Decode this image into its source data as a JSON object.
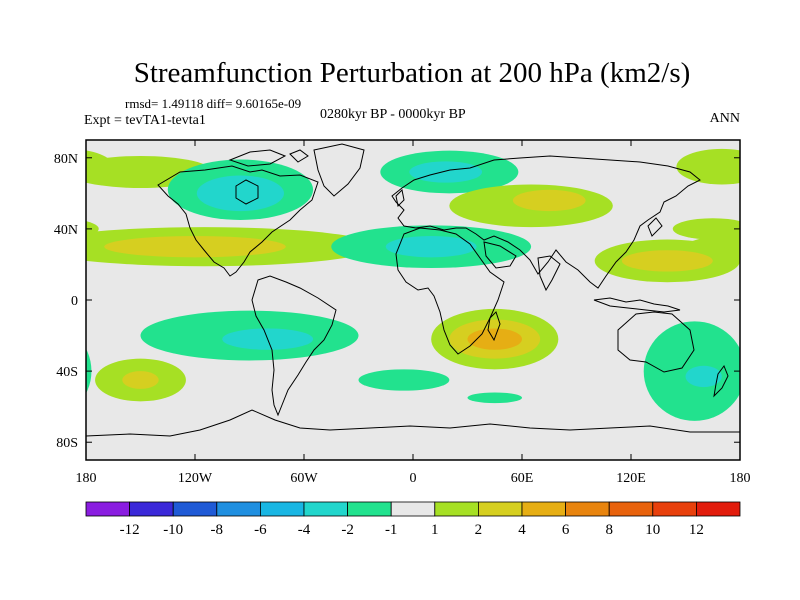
{
  "chart_data": {
    "type": "heatmap",
    "title": "Streamfunction Perturbation at 200 hPa (km2/s)",
    "stats_text": "rmsd= 1.49118 diff= 9.60165e-09",
    "experiment_text": "Expt = tevTA1-tevta1",
    "period_text": "0280kyr BP - 0000kyr BP",
    "season_text": "ANN",
    "xlim": [
      -180,
      180
    ],
    "ylim": [
      -90,
      90
    ],
    "x_ticks": [
      {
        "value": -180,
        "label": "180"
      },
      {
        "value": -120,
        "label": "120W"
      },
      {
        "value": -60,
        "label": "60W"
      },
      {
        "value": 0,
        "label": "0"
      },
      {
        "value": 60,
        "label": "60E"
      },
      {
        "value": 120,
        "label": "120E"
      },
      {
        "value": 180,
        "label": "180"
      }
    ],
    "y_ticks": [
      {
        "value": 80,
        "label": "80N"
      },
      {
        "value": 40,
        "label": "40N"
      },
      {
        "value": 0,
        "label": "0"
      },
      {
        "value": -40,
        "label": "40S"
      },
      {
        "value": -80,
        "label": "80S"
      }
    ],
    "colorbar_levels": [
      "-12",
      "-10",
      "-8",
      "-6",
      "-4",
      "-2",
      "-1",
      "1",
      "2",
      "4",
      "6",
      "8",
      "10",
      "12"
    ],
    "colorbar_colors": [
      "#8a1de0",
      "#3b28d8",
      "#1f5ad6",
      "#1f8fe0",
      "#19b6e3",
      "#22d6cc",
      "#22e28e",
      "#e8e8e8",
      "#a6e024",
      "#d6cf20",
      "#e6ae14",
      "#e8840e",
      "#e8620c",
      "#e8400c",
      "#e21c0c"
    ],
    "background_color": "#e8e8e8",
    "field_regions": [
      {
        "label": "N Pacific high-lat positive",
        "lon": -150,
        "lat": 72,
        "rlon": 40,
        "rlat": 9,
        "level": 1
      },
      {
        "label": "Canada low",
        "lon": -95,
        "lat": 62,
        "rlon": 40,
        "rlat": 17,
        "level": -1
      },
      {
        "label": "Canada low core",
        "lon": -95,
        "lat": 60,
        "rlon": 24,
        "rlat": 10,
        "level": -2
      },
      {
        "label": "N Atlantic low",
        "lon": 20,
        "lat": 72,
        "rlon": 38,
        "rlat": 12,
        "level": -1
      },
      {
        "label": "N Atlantic low core",
        "lon": 18,
        "lat": 72,
        "rlon": 20,
        "rlat": 6,
        "level": -2
      },
      {
        "label": "Eurasia positive",
        "lon": 65,
        "lat": 53,
        "rlon": 45,
        "rlat": 12,
        "level": 1
      },
      {
        "label": "Eurasia positive core",
        "lon": 75,
        "lat": 56,
        "rlon": 20,
        "rlat": 6,
        "level": 2
      },
      {
        "label": "Arctic Asia positive",
        "lon": 170,
        "lat": 75,
        "rlon": 25,
        "rlat": 10,
        "level": 1
      },
      {
        "label": "Subtropical N Pacific/Atlantic band",
        "lon": -115,
        "lat": 30,
        "rlon": 95,
        "rlat": 11,
        "level": 1
      },
      {
        "label": "Subtropical band core",
        "lon": -120,
        "lat": 30,
        "rlon": 50,
        "rlat": 6,
        "level": 2
      },
      {
        "label": "N Africa low",
        "lon": 10,
        "lat": 30,
        "rlon": 55,
        "rlat": 12,
        "level": -1
      },
      {
        "label": "N Africa low core",
        "lon": 10,
        "lat": 30,
        "rlon": 25,
        "rlat": 6,
        "level": -2
      },
      {
        "label": "W Pacific positive",
        "lon": 140,
        "lat": 22,
        "rlon": 40,
        "rlat": 12,
        "level": 1
      },
      {
        "label": "W Pacific positive core",
        "lon": 140,
        "lat": 22,
        "rlon": 25,
        "rlat": 6,
        "level": 2
      },
      {
        "label": "NE Asia positive",
        "lon": 165,
        "lat": 40,
        "rlon": 22,
        "rlat": 6,
        "level": 1
      },
      {
        "label": "S Pacific/S America low",
        "lon": -90,
        "lat": -20,
        "rlon": 60,
        "rlat": 14,
        "level": -1
      },
      {
        "label": "S America low core",
        "lon": -80,
        "lat": -22,
        "rlon": 25,
        "rlat": 6,
        "level": -2
      },
      {
        "label": "S Africa positive",
        "lon": 45,
        "lat": -22,
        "rlon": 35,
        "rlat": 17,
        "level": 1
      },
      {
        "label": "S Africa positive mid",
        "lon": 45,
        "lat": -22,
        "rlon": 25,
        "rlat": 11,
        "level": 2
      },
      {
        "label": "S Africa positive core",
        "lon": 45,
        "lat": -22,
        "rlon": 15,
        "rlat": 6,
        "level": 4
      },
      {
        "label": "S Pacific positive",
        "lon": -150,
        "lat": -45,
        "rlon": 25,
        "rlat": 12,
        "level": 1
      },
      {
        "label": "S Pacific positive core",
        "lon": -150,
        "lat": -45,
        "rlon": 10,
        "rlat": 5,
        "level": 2
      },
      {
        "label": "SW Pacific low",
        "lon": 155,
        "lat": -40,
        "rlon": 28,
        "rlat": 28,
        "level": -1
      },
      {
        "label": "SW Pacific low core",
        "lon": 160,
        "lat": -43,
        "rlon": 10,
        "rlat": 6,
        "level": -2
      },
      {
        "label": "S Atlantic low",
        "lon": -5,
        "lat": -45,
        "rlon": 25,
        "rlat": 6,
        "level": -1
      },
      {
        "label": "S Ocean low",
        "lon": 45,
        "lat": -55,
        "rlon": 15,
        "rlat": 3,
        "level": -1
      }
    ]
  }
}
